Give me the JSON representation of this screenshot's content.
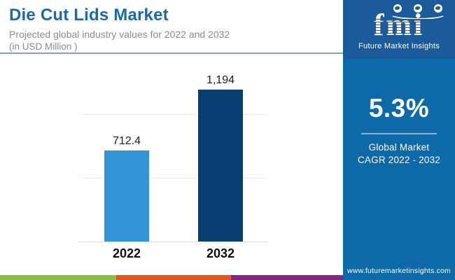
{
  "header": {
    "title": "Die Cut Lids Market",
    "subtitle": "Projected global industry values for 2022 and 2032",
    "unit_note": "(in USD Million )"
  },
  "chart_data": {
    "type": "bar",
    "title": "Die Cut Lids Market",
    "subtitle": "Projected global industry values for 2022 and 2032 (in USD Million)",
    "categories": [
      "2022",
      "2032"
    ],
    "values": [
      712.4,
      1194
    ],
    "value_labels": [
      "712.4",
      "1,194"
    ],
    "xlabel": "",
    "ylabel": "USD Million",
    "ylim": [
      0,
      1250
    ],
    "gridline_values": [
      500,
      1000
    ],
    "grid": "horizontal-only",
    "legend": "none",
    "bar_colors": [
      "#3294d6",
      "#083d72"
    ]
  },
  "side_panel": {
    "logo": {
      "text": "fmi",
      "tagline": "Future Market Insights",
      "globe_icon_count": 3
    },
    "cagr_value": "5.3%",
    "cagr_label_line1": "Global Market",
    "cagr_label_line2": "CAGR 2022 - 2032",
    "website": "www.futuremarketinsights.com"
  },
  "colors": {
    "title": "#1a6aab",
    "subtitle": "#8c8c8c",
    "header_divider": "#7aa6ca",
    "panel_logo_bg": "#1b5b9c",
    "panel_main_bg": "#0e69a9",
    "stripe_green": "#8cc044",
    "stripe_orange": "#e0571f",
    "stripe_purple": "#84257f"
  }
}
